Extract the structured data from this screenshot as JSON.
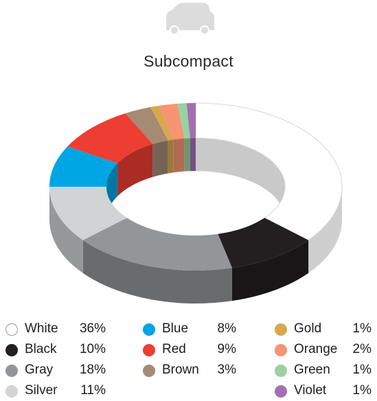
{
  "chart_data": {
    "type": "pie",
    "variant": "3d-donut",
    "title": "Subcompact",
    "legend_placement": "bottom",
    "slices": [
      {
        "label": "White",
        "value": 36,
        "display": "36%",
        "color": "#ffffff"
      },
      {
        "label": "Black",
        "value": 10,
        "display": "10%",
        "color": "#231f20"
      },
      {
        "label": "Gray",
        "value": 18,
        "display": "18%",
        "color": "#939598"
      },
      {
        "label": "Silver",
        "value": 11,
        "display": "11%",
        "color": "#d1d3d4"
      },
      {
        "label": "Blue",
        "value": 8,
        "display": "8%",
        "color": "#00a5e3"
      },
      {
        "label": "Red",
        "value": 9,
        "display": "9%",
        "color": "#ee3d33"
      },
      {
        "label": "Brown",
        "value": 3,
        "display": "3%",
        "color": "#a58a74"
      },
      {
        "label": "Gold",
        "value": 1,
        "display": "1%",
        "color": "#d8a84c"
      },
      {
        "label": "Orange",
        "value": 2,
        "display": "2%",
        "color": "#f79473"
      },
      {
        "label": "Green",
        "value": 1,
        "display": "1%",
        "color": "#98d2a0"
      },
      {
        "label": "Violet",
        "value": 1,
        "display": "1%",
        "color": "#a56eb3"
      }
    ]
  },
  "icon": "car-icon"
}
